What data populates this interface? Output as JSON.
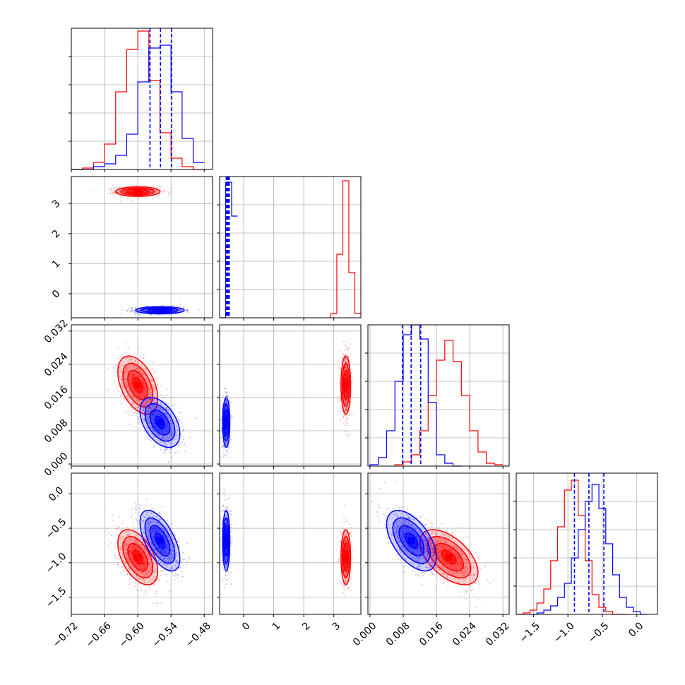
{
  "chart_data": {
    "type": "corner",
    "colors": {
      "red": "#ff0000",
      "blue": "#0000ff"
    },
    "axes_ticks": {
      "p0": {
        "values": [
          -0.72,
          -0.66,
          -0.6,
          -0.54,
          -0.48
        ],
        "labels": [
          "−0.72",
          "−0.66",
          "−0.60",
          "−0.54",
          "−0.48"
        ],
        "lim": [
          -0.72,
          -0.465
        ]
      },
      "p1": {
        "values": [
          0,
          1,
          2,
          3
        ],
        "labels": [
          "0",
          "1",
          "2",
          "3"
        ],
        "lim": [
          -0.8,
          3.9
        ]
      },
      "p2": {
        "values": [
          0.0,
          0.008,
          0.016,
          0.024,
          0.032
        ],
        "labels": [
          "0.000",
          "0.008",
          "0.016",
          "0.024",
          "0.032"
        ],
        "lim": [
          -0.0005,
          0.0335
        ]
      },
      "p3": {
        "values": [
          -1.5,
          -1.0,
          -0.5,
          0.0
        ],
        "labels": [
          "−1.5",
          "−1.0",
          "−0.5",
          "0.0"
        ],
        "lim": [
          -1.75,
          0.3
        ]
      }
    },
    "p1_y_ticks": {
      "values": [
        0,
        1,
        2,
        3
      ],
      "labels": [
        "0",
        "1",
        "2",
        "3"
      ]
    },
    "p2_y_ticks": {
      "values": [
        0.0,
        0.008,
        0.016,
        0.024,
        0.032
      ],
      "labels": [
        "0.000",
        "0.008",
        "0.016",
        "0.024",
        "0.032"
      ]
    },
    "p3_y_ticks": {
      "values": [
        -1.5,
        -1.0,
        -0.5,
        0.0
      ],
      "labels": [
        "−1.5",
        "−1.0",
        "−0.5",
        "0.0"
      ]
    },
    "diag_unlabeled_y_ticks": [
      0.2,
      0.4,
      0.6,
      0.8
    ],
    "histograms": [
      {
        "param": "p0",
        "series": [
          {
            "name": "",
            "color": "red",
            "edges": [
              -0.72,
              -0.7,
              -0.68,
              -0.66,
              -0.64,
              -0.62,
              -0.6,
              -0.58,
              -0.56,
              -0.54,
              -0.52,
              -0.5,
              -0.48
            ],
            "values": [
              0.0,
              0.01,
              0.05,
              0.18,
              0.55,
              0.85,
              0.98,
              0.63,
              0.26,
              0.08,
              0.02,
              0.0
            ]
          },
          {
            "name": "",
            "color": "blue",
            "edges": [
              -0.72,
              -0.7,
              -0.68,
              -0.66,
              -0.64,
              -0.62,
              -0.6,
              -0.58,
              -0.56,
              -0.54,
              -0.52,
              -0.5,
              -0.48
            ],
            "values": [
              0.0,
              0.0,
              0.02,
              0.04,
              0.1,
              0.25,
              0.62,
              0.86,
              0.88,
              0.55,
              0.22,
              0.05
            ]
          }
        ],
        "quantiles": [
          -0.578,
          -0.559,
          -0.539
        ]
      },
      {
        "param": "p1",
        "series": [
          {
            "name": "",
            "color": "red",
            "edges": [
              2.9,
              3.1,
              3.3,
              3.5,
              3.7,
              3.9
            ],
            "values": [
              0.03,
              0.45,
              0.97,
              0.32,
              0.03
            ]
          },
          {
            "name": "",
            "color": "blue",
            "edges": [
              -0.8,
              -0.6,
              -0.4,
              -0.2
            ],
            "values": [
              0.0,
              0.96,
              0.72
            ]
          }
        ],
        "quantiles": [
          -0.58,
          -0.56,
          -0.54,
          -0.52,
          -0.5,
          -0.48
        ]
      },
      {
        "param": "p2",
        "series": [
          {
            "name": "",
            "color": "red",
            "edges": [
              0.006,
              0.008,
              0.01,
              0.012,
              0.014,
              0.016,
              0.018,
              0.02,
              0.022,
              0.024,
              0.026,
              0.028,
              0.03,
              0.032
            ],
            "values": [
              0.01,
              0.03,
              0.08,
              0.25,
              0.5,
              0.75,
              0.89,
              0.74,
              0.5,
              0.25,
              0.1,
              0.02,
              0.01
            ]
          },
          {
            "name": "",
            "color": "blue",
            "edges": [
              0.0,
              0.002,
              0.004,
              0.006,
              0.008,
              0.01,
              0.012,
              0.014,
              0.016,
              0.018,
              0.02,
              0.022
            ],
            "values": [
              0.01,
              0.06,
              0.25,
              0.6,
              0.93,
              1.0,
              0.9,
              0.45,
              0.08,
              0.02,
              0.0
            ]
          }
        ],
        "quantiles": [
          0.0078,
          0.0099,
          0.0122
        ]
      },
      {
        "param": "p3",
        "series": [
          {
            "name": "",
            "color": "red",
            "edges": [
              -1.75,
              -1.65,
              -1.55,
              -1.45,
              -1.35,
              -1.25,
              -1.15,
              -1.05,
              -0.95,
              -0.85,
              -0.75,
              -0.65,
              -0.55,
              -0.45,
              -0.35,
              -0.25,
              -0.15
            ],
            "values": [
              0.0,
              0.01,
              0.03,
              0.08,
              0.18,
              0.38,
              0.62,
              0.88,
              0.95,
              0.7,
              0.38,
              0.14,
              0.05,
              0.02,
              0.0,
              0.0
            ]
          },
          {
            "name": "",
            "color": "blue",
            "edges": [
              -1.55,
              -1.45,
              -1.35,
              -1.25,
              -1.15,
              -1.05,
              -0.95,
              -0.85,
              -0.75,
              -0.65,
              -0.55,
              -0.45,
              -0.35,
              -0.25,
              -0.15,
              -0.05,
              0.05,
              0.15
            ],
            "values": [
              0.0,
              0.01,
              0.03,
              0.06,
              0.12,
              0.22,
              0.4,
              0.6,
              0.8,
              0.92,
              0.75,
              0.5,
              0.28,
              0.12,
              0.05,
              0.02,
              0.0
            ]
          }
        ],
        "quantiles": [
          -0.905,
          -0.695,
          -0.478
        ]
      }
    ],
    "pairs": [
      {
        "x": "p0",
        "y": "p1",
        "clusters": [
          {
            "color": "red",
            "center": [
              -0.6,
              3.4
            ],
            "sigma": [
              0.02,
              0.08
            ],
            "rho": 0.0
          },
          {
            "color": "blue",
            "center": [
              -0.56,
              -0.55
            ],
            "sigma": [
              0.022,
              0.06
            ],
            "rho": 0.0
          }
        ]
      },
      {
        "x": "p0",
        "y": "p2",
        "clusters": [
          {
            "color": "red",
            "center": [
              -0.6,
              0.019
            ],
            "sigma": [
              0.018,
              0.0035
            ],
            "rho": -0.45
          },
          {
            "color": "blue",
            "center": [
              -0.56,
              0.01
            ],
            "sigma": [
              0.018,
              0.003
            ],
            "rho": -0.45
          }
        ]
      },
      {
        "x": "p1",
        "y": "p2",
        "clusters": [
          {
            "color": "red",
            "center": [
              3.4,
              0.019
            ],
            "sigma": [
              0.08,
              0.0035
            ],
            "rho": 0.0
          },
          {
            "color": "blue",
            "center": [
              -0.58,
              0.01
            ],
            "sigma": [
              0.06,
              0.003
            ],
            "rho": 0.0
          }
        ]
      },
      {
        "x": "p0",
        "y": "p3",
        "clusters": [
          {
            "color": "red",
            "center": [
              -0.6,
              -0.92
            ],
            "sigma": [
              0.018,
              0.2
            ],
            "rho": -0.5
          },
          {
            "color": "blue",
            "center": [
              -0.56,
              -0.68
            ],
            "sigma": [
              0.018,
              0.22
            ],
            "rho": -0.6
          }
        ]
      },
      {
        "x": "p1",
        "y": "p3",
        "clusters": [
          {
            "color": "red",
            "center": [
              3.4,
              -0.92
            ],
            "sigma": [
              0.08,
              0.2
            ],
            "rho": 0.0
          },
          {
            "color": "blue",
            "center": [
              -0.58,
              -0.68
            ],
            "sigma": [
              0.06,
              0.22
            ],
            "rho": 0.0
          }
        ]
      },
      {
        "x": "p2",
        "y": "p3",
        "clusters": [
          {
            "color": "red",
            "center": [
              0.019,
              -0.92
            ],
            "sigma": [
              0.0035,
              0.2
            ],
            "rho": -0.55
          },
          {
            "color": "blue",
            "center": [
              0.01,
              -0.68
            ],
            "sigma": [
              0.003,
              0.22
            ],
            "rho": -0.55
          }
        ]
      }
    ],
    "contour_levels": [
      0.5,
      1.0,
      1.5,
      2.0
    ],
    "grid": true
  }
}
